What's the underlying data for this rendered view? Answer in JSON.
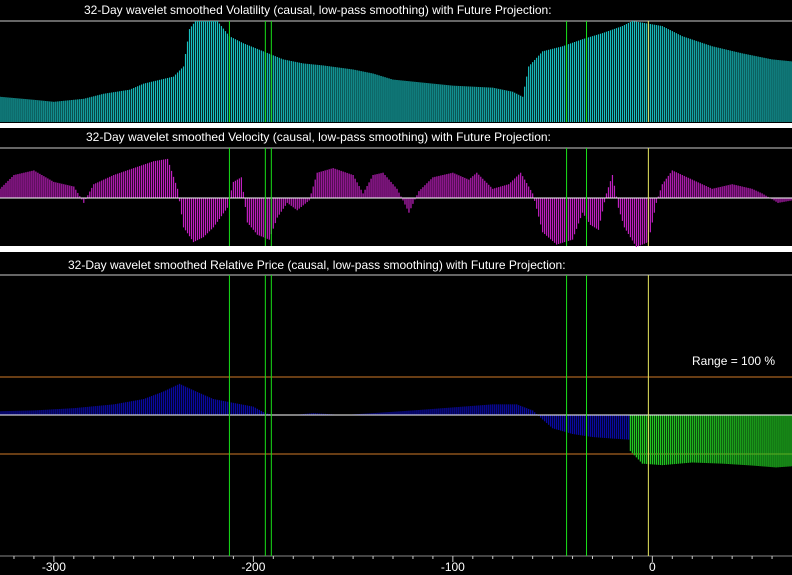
{
  "chart_data": [
    {
      "type": "bar",
      "title": "32-Day wavelet smoothed Volatility (causal, low-pass smoothing) with Future Projection:",
      "color": "#19c0c0",
      "keyframes": [
        [
          -327,
          0.25
        ],
        [
          -310,
          0.22
        ],
        [
          -300,
          0.2
        ],
        [
          -285,
          0.23
        ],
        [
          -275,
          0.28
        ],
        [
          -262,
          0.32
        ],
        [
          -255,
          0.38
        ],
        [
          -240,
          0.45
        ],
        [
          -235,
          0.55
        ],
        [
          -232,
          0.92
        ],
        [
          -229,
          1.0
        ],
        [
          -218,
          1.0
        ],
        [
          -212,
          0.85
        ],
        [
          -205,
          0.78
        ],
        [
          -195,
          0.7
        ],
        [
          -185,
          0.62
        ],
        [
          -175,
          0.58
        ],
        [
          -165,
          0.56
        ],
        [
          -150,
          0.52
        ],
        [
          -140,
          0.48
        ],
        [
          -130,
          0.42
        ],
        [
          -120,
          0.4
        ],
        [
          -110,
          0.38
        ],
        [
          -100,
          0.36
        ],
        [
          -90,
          0.35
        ],
        [
          -80,
          0.34
        ],
        [
          -70,
          0.3
        ],
        [
          -65,
          0.25
        ],
        [
          -62,
          0.55
        ],
        [
          -55,
          0.7
        ],
        [
          -45,
          0.75
        ],
        [
          -35,
          0.82
        ],
        [
          -25,
          0.88
        ],
        [
          -15,
          0.95
        ],
        [
          -10,
          1.0
        ],
        [
          5,
          0.95
        ],
        [
          15,
          0.85
        ],
        [
          30,
          0.75
        ],
        [
          45,
          0.68
        ],
        [
          60,
          0.62
        ],
        [
          70,
          0.6
        ]
      ]
    },
    {
      "type": "bar",
      "title": "32-Day wavelet smoothed Velocity (causal, low-pass smoothing) with Future Projection:",
      "color": "#c020c0",
      "keyframes": [
        [
          -327,
          0.2
        ],
        [
          -320,
          0.5
        ],
        [
          -310,
          0.6
        ],
        [
          -300,
          0.35
        ],
        [
          -290,
          0.25
        ],
        [
          -285,
          -0.1
        ],
        [
          -280,
          0.3
        ],
        [
          -270,
          0.5
        ],
        [
          -260,
          0.65
        ],
        [
          -250,
          0.8
        ],
        [
          -243,
          0.85
        ],
        [
          -238,
          0.2
        ],
        [
          -235,
          -0.6
        ],
        [
          -230,
          -0.9
        ],
        [
          -225,
          -0.8
        ],
        [
          -220,
          -0.6
        ],
        [
          -213,
          -0.2
        ],
        [
          -210,
          0.35
        ],
        [
          -206,
          0.45
        ],
        [
          -203,
          -0.5
        ],
        [
          -198,
          -0.75
        ],
        [
          -192,
          -0.85
        ],
        [
          -188,
          -0.4
        ],
        [
          -183,
          -0.1
        ],
        [
          -178,
          -0.25
        ],
        [
          -172,
          -0.05
        ],
        [
          -168,
          0.55
        ],
        [
          -160,
          0.65
        ],
        [
          -150,
          0.5
        ],
        [
          -145,
          0.1
        ],
        [
          -140,
          0.5
        ],
        [
          -135,
          0.55
        ],
        [
          -128,
          0.2
        ],
        [
          -122,
          -0.3
        ],
        [
          -117,
          0.15
        ],
        [
          -110,
          0.45
        ],
        [
          -100,
          0.55
        ],
        [
          -92,
          0.4
        ],
        [
          -88,
          0.55
        ],
        [
          -80,
          0.2
        ],
        [
          -72,
          0.3
        ],
        [
          -66,
          0.55
        ],
        [
          -60,
          0.1
        ],
        [
          -55,
          -0.7
        ],
        [
          -48,
          -0.95
        ],
        [
          -40,
          -0.85
        ],
        [
          -35,
          -0.3
        ],
        [
          -31,
          -0.55
        ],
        [
          -27,
          -0.65
        ],
        [
          -23,
          0.1
        ],
        [
          -20,
          0.5
        ],
        [
          -17,
          -0.2
        ],
        [
          -14,
          -0.6
        ],
        [
          -8,
          -1.0
        ],
        [
          -2,
          -0.9
        ],
        [
          2,
          -0.1
        ],
        [
          5,
          0.3
        ],
        [
          10,
          0.6
        ],
        [
          20,
          0.4
        ],
        [
          30,
          0.2
        ],
        [
          40,
          0.3
        ],
        [
          50,
          0.2
        ],
        [
          55,
          0.1
        ],
        [
          63,
          -0.1
        ],
        [
          70,
          -0.05
        ]
      ]
    },
    {
      "type": "area",
      "title": "32-Day wavelet smoothed Relative Price (causal, low-pass smoothing) with Future Projection:",
      "series": [
        {
          "color": "#0a0aa0",
          "keyframes": [
            [
              -327,
              0.1
            ],
            [
              -310,
              0.12
            ],
            [
              -290,
              0.18
            ],
            [
              -270,
              0.28
            ],
            [
              -255,
              0.42
            ],
            [
              -245,
              0.62
            ],
            [
              -237,
              0.82
            ],
            [
              -230,
              0.65
            ],
            [
              -220,
              0.42
            ],
            [
              -210,
              0.32
            ],
            [
              -200,
              0.22
            ],
            [
              -194,
              0.05
            ],
            [
              -190,
              0.0
            ],
            [
              -180,
              0.0
            ],
            [
              -170,
              0.05
            ],
            [
              -155,
              0.0
            ],
            [
              -140,
              0.05
            ],
            [
              -120,
              0.12
            ],
            [
              -100,
              0.2
            ],
            [
              -80,
              0.28
            ],
            [
              -68,
              0.28
            ],
            [
              -60,
              0.12
            ],
            [
              -55,
              -0.12
            ],
            [
              -50,
              -0.35
            ],
            [
              -40,
              -0.5
            ],
            [
              -30,
              -0.58
            ],
            [
              -20,
              -0.62
            ],
            [
              -11,
              -0.65
            ]
          ]
        },
        {
          "color": "#22c822",
          "keyframes": [
            [
              -11,
              -0.95
            ],
            [
              -5,
              -1.28
            ],
            [
              5,
              -1.32
            ],
            [
              20,
              -1.25
            ],
            [
              35,
              -1.28
            ],
            [
              50,
              -1.33
            ],
            [
              62,
              -1.38
            ],
            [
              70,
              -1.35
            ]
          ]
        }
      ],
      "range_label": "Range = 100 %"
    }
  ],
  "x_axis": {
    "range": [
      -327,
      70
    ],
    "tick_labels": [
      {
        "value": -300,
        "label": "-300"
      },
      {
        "value": -200,
        "label": "-200"
      },
      {
        "value": -100,
        "label": "-100"
      },
      {
        "value": 0,
        "label": "0"
      }
    ]
  },
  "markers": {
    "green": [
      -212,
      -194,
      -191,
      -43,
      -33
    ],
    "yellow": [
      -2
    ]
  },
  "colors": {
    "background": "#000000",
    "gridline": "#ffffff",
    "range_line": "#d07a28",
    "separator": "#ffffff",
    "marker_green": "#19e019",
    "marker_yellow": "#e8e860"
  }
}
